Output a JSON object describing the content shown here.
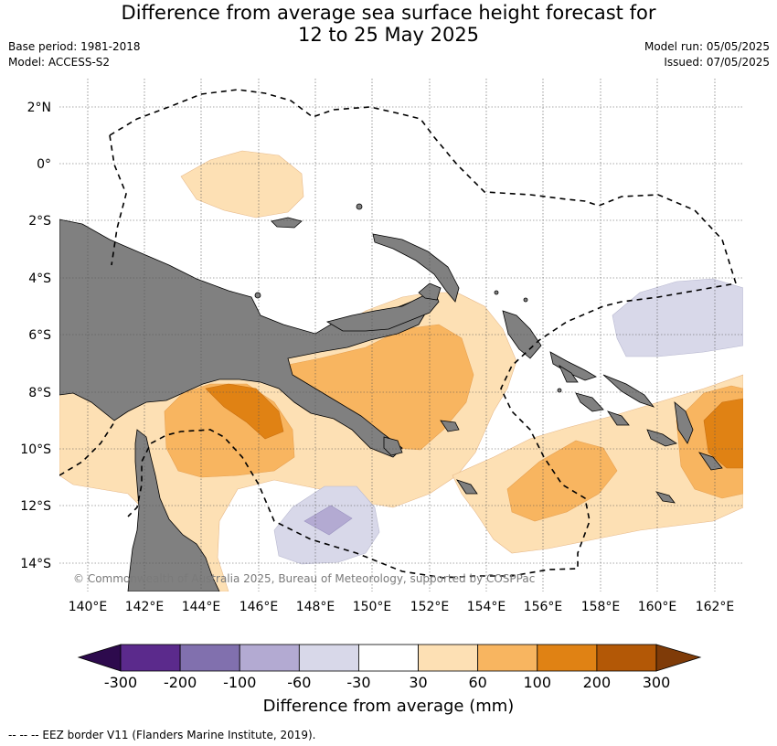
{
  "title_line1": "Difference from average sea surface height forecast for",
  "title_line2": "12 to 25 May 2025",
  "base_period": "Base period: 1981-2018",
  "model": "Model: ACCESS-S2",
  "model_run": "Model run: 05/05/2025",
  "issued": "Issued: 07/05/2025",
  "lat_labels": [
    "2°N",
    "0°",
    "2°S",
    "4°S",
    "6°S",
    "8°S",
    "10°S",
    "12°S",
    "14°S"
  ],
  "lon_labels": [
    "140°E",
    "142°E",
    "144°E",
    "146°E",
    "148°E",
    "150°E",
    "152°E",
    "154°E",
    "156°E",
    "158°E",
    "160°E",
    "162°E"
  ],
  "copyright": "© Commonwealth of Australia 2025, Bureau of Meteorology, supported by COSPPac",
  "colorbar": {
    "title": "Difference from average (mm)",
    "ticks": [
      "-300",
      "-200",
      "-100",
      "-60",
      "-30",
      "30",
      "60",
      "100",
      "200",
      "300"
    ],
    "colors": [
      "#2d0a4d",
      "#5b2a8c",
      "#8170ae",
      "#b3aad2",
      "#d8d8e9",
      "#ffffff",
      "#fde0b4",
      "#f8b560",
      "#e08214",
      "#b35806",
      "#7f3b08"
    ]
  },
  "legend_footer": "--  --  -- EEZ border V11 (Flanders Marine Institute, 2019).",
  "colors": {
    "land": "#808080",
    "ocean": "#ffffff",
    "grid": "#555555"
  }
}
